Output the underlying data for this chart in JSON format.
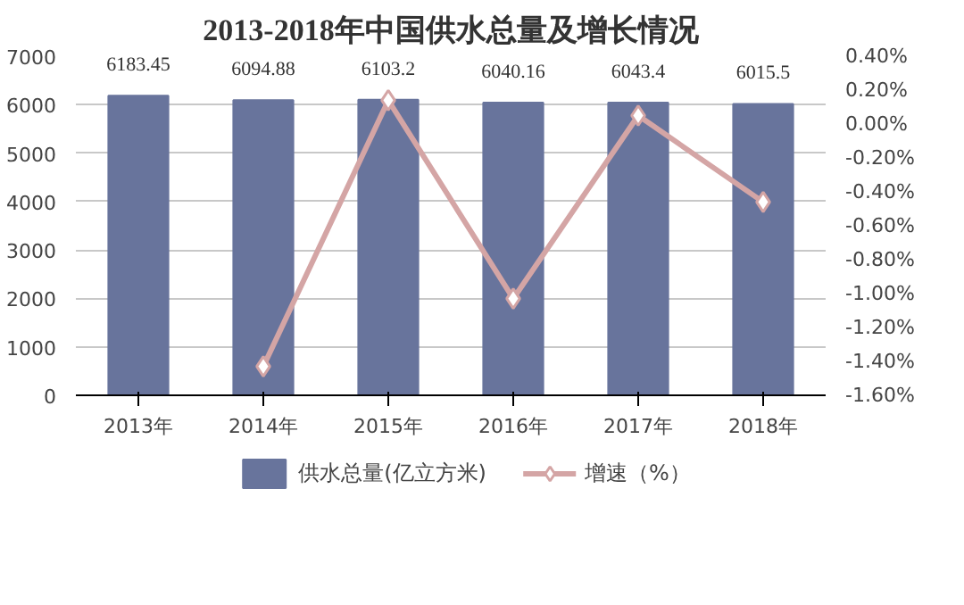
{
  "chart_data": {
    "type": "bar",
    "title": "2013-2018年中国供水总量及增长情况",
    "categories": [
      "2013年",
      "2014年",
      "2015年",
      "2016年",
      "2017年",
      "2018年"
    ],
    "series": [
      {
        "name": "供水总量(亿立方米)",
        "color": "#68749c",
        "values": [
          6183.45,
          6094.88,
          6103.2,
          6040.16,
          6043.4,
          6015.5
        ],
        "data_labels": true
      },
      {
        "name": "增速（%）",
        "type": "line",
        "axis": "y2",
        "color": "#d4a5a5",
        "marker": "diamond",
        "values": [
          null,
          -1.43,
          0.14,
          -1.03,
          0.05,
          -0.46
        ]
      }
    ],
    "ylim": [
      0,
      7000
    ],
    "yticks": [
      0,
      1000,
      2000,
      3000,
      4000,
      5000,
      6000,
      7000
    ],
    "y2lim": [
      -1.6,
      0.4
    ],
    "y2ticks": [
      {
        "value": -1.6,
        "label": "-1.60%"
      },
      {
        "value": -1.4,
        "label": "-1.40%"
      },
      {
        "value": -1.2,
        "label": "-1.20%"
      },
      {
        "value": -1.0,
        "label": "-1.00%"
      },
      {
        "value": -0.8,
        "label": "-0.80%"
      },
      {
        "value": -0.6,
        "label": "-0.60%"
      },
      {
        "value": -0.4,
        "label": "-0.40%"
      },
      {
        "value": -0.2,
        "label": "-0.20%"
      },
      {
        "value": 0.0,
        "label": "0.00%"
      },
      {
        "value": 0.2,
        "label": "0.20%"
      },
      {
        "value": 0.4,
        "label": "0.40%"
      }
    ],
    "grid": "y",
    "legend": "bottom"
  }
}
